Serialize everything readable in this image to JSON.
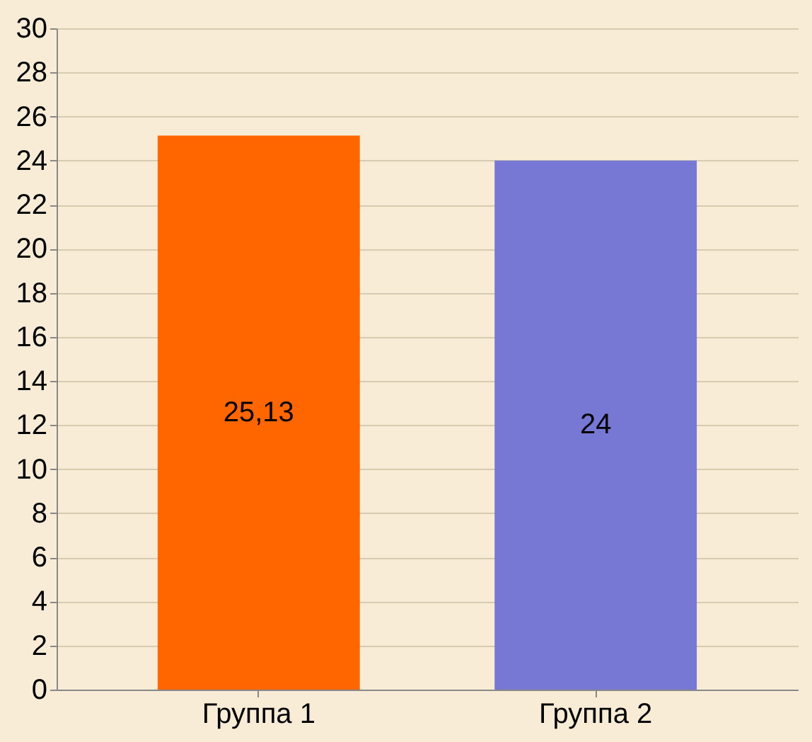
{
  "chart_data": {
    "type": "bar",
    "categories": [
      "Группа 1",
      "Группа 2"
    ],
    "values": [
      25.13,
      24
    ],
    "colors": [
      "#ff6600",
      "#7777d4"
    ],
    "value_labels": [
      "25,13",
      "24"
    ],
    "ylim": [
      0,
      30
    ],
    "yticks": [
      0,
      2,
      4,
      6,
      8,
      10,
      12,
      14,
      16,
      18,
      20,
      22,
      24,
      26,
      28,
      30
    ],
    "grid": "y"
  }
}
